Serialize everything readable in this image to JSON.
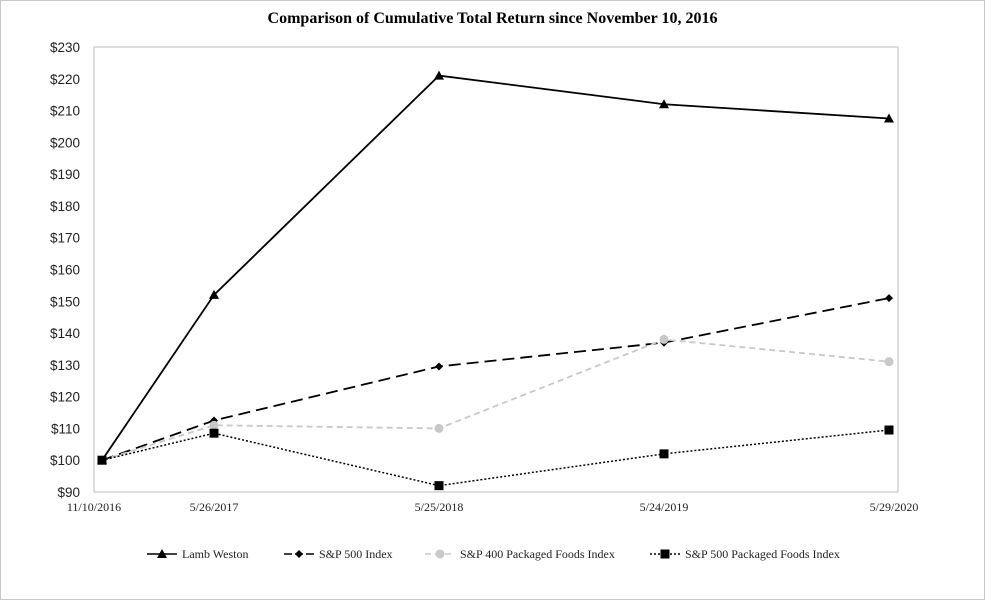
{
  "chart_data": {
    "type": "line",
    "title": "Comparison of Cumulative Total Return since November 10, 2016",
    "xlabel": "",
    "ylabel": "",
    "categories": [
      "11/10/2016",
      "5/26/2017",
      "5/25/2018",
      "5/24/2019",
      "5/29/2020"
    ],
    "y_ticks": [
      "$90",
      "$100",
      "$110",
      "$120",
      "$130",
      "$140",
      "$150",
      "$160",
      "$170",
      "$180",
      "$190",
      "$200",
      "$210",
      "$220",
      "$230"
    ],
    "ylim": [
      90,
      230
    ],
    "grid": false,
    "legend_position": "bottom",
    "series": [
      {
        "name": "Lamb Weston",
        "values": [
          100,
          152,
          221,
          212,
          207.5
        ],
        "color": "#000000",
        "dash": "solid",
        "marker": "triangle"
      },
      {
        "name": "S&P 500 Index",
        "values": [
          100,
          112.5,
          129.5,
          137,
          151
        ],
        "color": "#000000",
        "dash": "longdash",
        "marker": "diamond"
      },
      {
        "name": "S&P 400 Packaged Foods Index",
        "values": [
          100,
          111,
          110,
          138,
          131
        ],
        "color": "#c8c8c8",
        "dash": "dash",
        "marker": "circle"
      },
      {
        "name": "S&P 500 Packaged Foods Index",
        "values": [
          100,
          108.5,
          92,
          102,
          109.5
        ],
        "color": "#000000",
        "dash": "dot",
        "marker": "square"
      }
    ]
  }
}
